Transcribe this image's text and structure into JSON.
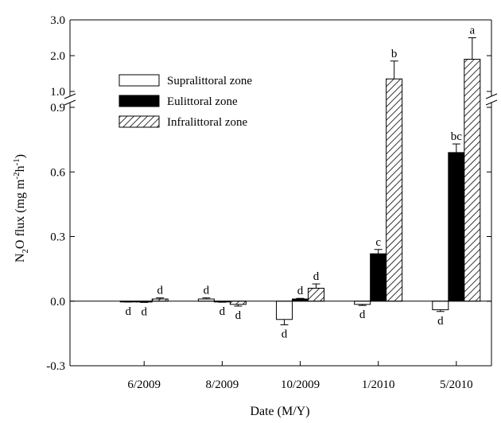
{
  "chart_data": {
    "type": "bar",
    "title": "",
    "xlabel": "Date (M/Y)",
    "ylabel_parts": {
      "base": "N",
      "sub1": "2",
      "mid": "O flux (mg m",
      "sup1": "-2",
      "mid2": "h",
      "sup2": "-1",
      "end": ")"
    },
    "categories": [
      "6/2009",
      "8/2009",
      "10/2009",
      "1/2010",
      "5/2010"
    ],
    "y_axis": {
      "broken": true,
      "lower_range": [
        -0.3,
        0.9
      ],
      "lower_ticks": [
        "-0.3",
        "0.0",
        "0.3",
        "0.6",
        "0.9"
      ],
      "upper_range": [
        1.0,
        3.0
      ],
      "upper_ticks": [
        "1.0",
        "2.0",
        "3.0"
      ]
    },
    "legend": {
      "placement": "upper-left"
    },
    "series": [
      {
        "name": "Supralittoral zone",
        "fill": "white",
        "values": [
          -0.002,
          0.01,
          -0.085,
          -0.015,
          -0.04
        ],
        "errors": [
          0.002,
          0.005,
          0.025,
          0.005,
          0.008
        ],
        "labels": [
          "d",
          "d",
          "d",
          "d",
          "d"
        ]
      },
      {
        "name": "Eulittoral zone",
        "fill": "black",
        "values": [
          -0.004,
          -0.003,
          0.01,
          0.22,
          0.69
        ],
        "errors": [
          0.002,
          0.002,
          0.003,
          0.02,
          0.04
        ],
        "labels": [
          "d",
          "d",
          "d",
          "c",
          "bc"
        ]
      },
      {
        "name": "Infralittoral zone",
        "fill": "hatched",
        "values": [
          0.01,
          -0.015,
          0.06,
          1.35,
          1.9
        ],
        "errors": [
          0.005,
          0.008,
          0.02,
          0.5,
          0.6
        ],
        "labels": [
          "d",
          "d",
          "d",
          "b",
          "a"
        ]
      }
    ],
    "colors": {
      "axis": "#000000",
      "bar_stroke": "#000000",
      "hatch": "#000000"
    }
  }
}
